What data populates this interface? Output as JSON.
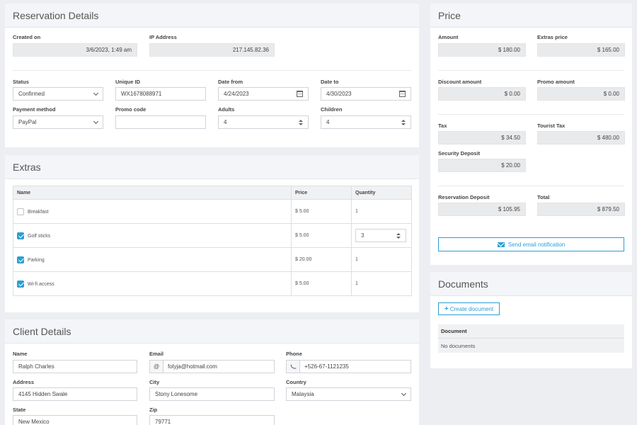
{
  "reservation": {
    "title": "Reservation Details",
    "created_on_label": "Created on",
    "created_on": "3/6/2023, 1:49 am",
    "ip_label": "IP Address",
    "ip": "217.145.82.36",
    "status_label": "Status",
    "status": "Confirmed",
    "unique_id_label": "Unique ID",
    "unique_id": "WX1678088971",
    "date_from_label": "Date from",
    "date_from": "4/24/2023",
    "date_to_label": "Date to",
    "date_to": "4/30/2023",
    "payment_label": "Payment method",
    "payment": "PayPal",
    "promo_label": "Promo code",
    "promo": "",
    "adults_label": "Adults",
    "adults": "4",
    "children_label": "Children",
    "children": "4"
  },
  "extras": {
    "title": "Extras",
    "headers": [
      "Name",
      "Price",
      "Quantity"
    ],
    "rows": [
      {
        "name": "Breakfast",
        "price": "$ 5.00",
        "quantity": "1",
        "checked": false
      },
      {
        "name": "Golf sticks",
        "price": "$ 5.00",
        "quantity": "3",
        "checked": true
      },
      {
        "name": "Parking",
        "price": "$ 20.00",
        "quantity": "1",
        "checked": true
      },
      {
        "name": "Wi-fi access",
        "price": "$ 5.00",
        "quantity": "1",
        "checked": true
      }
    ]
  },
  "client": {
    "title": "Client Details",
    "name_label": "Name",
    "name": "Ralph Charles",
    "email_label": "Email",
    "email": "folyja@hotmail.com",
    "email_addon": "@",
    "phone_label": "Phone",
    "phone": "+526-67-1121235",
    "address_label": "Address",
    "address": "4145 Hidden Swale",
    "city_label": "City",
    "city": "Stony Lonesome",
    "country_label": "Country",
    "country": "Malaysia",
    "state_label": "State",
    "state": "New Mexico",
    "zip_label": "Zip",
    "zip": "79771"
  },
  "price": {
    "title": "Price",
    "amount_label": "Amount",
    "amount": "$ 180.00",
    "extras_label": "Extras price",
    "extras": "$ 165.00",
    "discount_label": "Discount amount",
    "discount": "$ 0.00",
    "promo_label": "Promo amount",
    "promo": "$ 0.00",
    "tax_label": "Tax",
    "tax": "$ 34.50",
    "tourist_tax_label": "Tourist Tax",
    "tourist_tax": "$ 480.00",
    "security_label": "Security Deposit",
    "security": "$ 20.00",
    "res_deposit_label": "Reservation Deposit",
    "res_deposit": "$ 105.95",
    "total_label": "Total",
    "total": "$ 879.50",
    "send_button": "Send email notification"
  },
  "documents": {
    "title": "Documents",
    "create_button": "Create document",
    "column": "Document",
    "empty": "No documents"
  },
  "colors": {
    "accent": "#2c9fd4",
    "panel_head": "#f3f5f8",
    "background": "#eceef1"
  }
}
